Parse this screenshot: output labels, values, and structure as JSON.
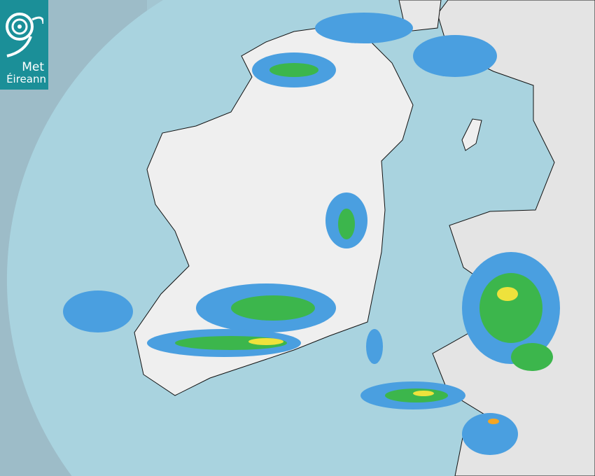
{
  "logo": {
    "line1": "Met",
    "line2": "Éireann",
    "color": "#1b8f98"
  },
  "colors": {
    "sea_in_range": "#a9d3df",
    "out_of_range": "#9dbcc8",
    "land": "#eeeeee",
    "rain_light": "#4a9fe0",
    "rain_moderate": "#3cb64c",
    "rain_heavy": "#eee23c",
    "rain_very_heavy": "#f5a623"
  }
}
